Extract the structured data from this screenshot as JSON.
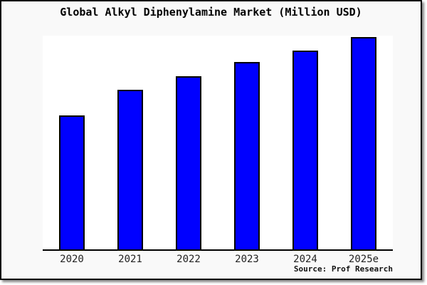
{
  "title": "Global Alkyl Diphenylamine Market (Million USD)",
  "source": "Source: Prof Research",
  "colors": {
    "bar_fill": "#0000ff",
    "bar_border": "#000000",
    "frame_background": "#f9f9f9",
    "plot_background": "#ffffff",
    "axis_line": "#000000",
    "frame_border": "#0a0a0a",
    "tick_text": "#222222"
  },
  "chart_data": {
    "type": "bar",
    "title": "Global Alkyl Diphenylamine Market (Million USD)",
    "categories": [
      "2020",
      "2021",
      "2022",
      "2023",
      "2024",
      "2025e"
    ],
    "values": [
      63.1,
      75.2,
      81.5,
      88.3,
      93.6,
      100
    ],
    "value_scale_note": "chart displays no y-axis, gridlines or value labels; values are estimated relative bar heights with tallest bar (2025e) = 100",
    "xlabel": "",
    "ylabel": "",
    "ylim": [
      0,
      100.7
    ],
    "grid": false,
    "legend": false,
    "source": "Source: Prof Research"
  }
}
